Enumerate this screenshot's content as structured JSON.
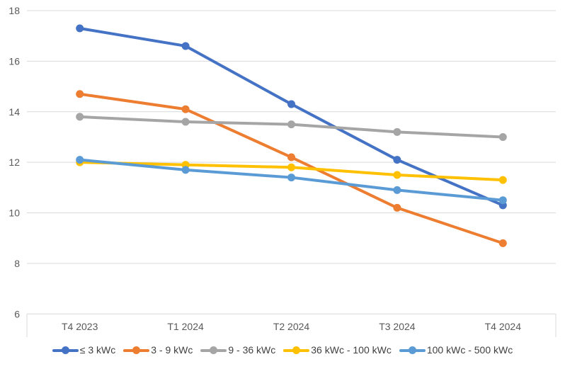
{
  "chart_data": {
    "type": "line",
    "title": "",
    "xlabel": "",
    "ylabel": "",
    "categories": [
      "T4 2023",
      "T1 2024",
      "T2 2024",
      "T3 2024",
      "T4 2024"
    ],
    "series": [
      {
        "name": "≤ 3 kWc",
        "color": "#4472C4",
        "values": [
          17.3,
          16.6,
          14.3,
          12.1,
          10.3
        ]
      },
      {
        "name": "3  - 9 kWc",
        "color": "#ED7D31",
        "values": [
          14.7,
          14.1,
          12.2,
          10.2,
          8.8
        ]
      },
      {
        "name": "9 - 36 kWc",
        "color": "#A5A5A5",
        "values": [
          13.8,
          13.6,
          13.5,
          13.2,
          13.0
        ]
      },
      {
        "name": "36 kWc - 100 kWc",
        "color": "#FFC000",
        "values": [
          12.0,
          11.9,
          11.8,
          11.5,
          11.3
        ]
      },
      {
        "name": "100 kWc - 500 kWc",
        "color": "#5B9BD5",
        "values": [
          12.1,
          11.7,
          11.4,
          10.9,
          10.5
        ]
      }
    ],
    "y_axis": {
      "min": 6,
      "max": 18,
      "step": 2,
      "ticks": [
        18,
        16,
        14,
        12,
        10,
        8,
        6
      ]
    },
    "grid": true,
    "legend_position": "bottom",
    "styles": {
      "gridline_color": "#D9D9D9",
      "axis_line_color": "#D9D9D9",
      "tick_mark_color": "#D9D9D9",
      "axis_label_color": "#595959",
      "legend_text_color": "#404040",
      "background": "#FFFFFF"
    }
  }
}
